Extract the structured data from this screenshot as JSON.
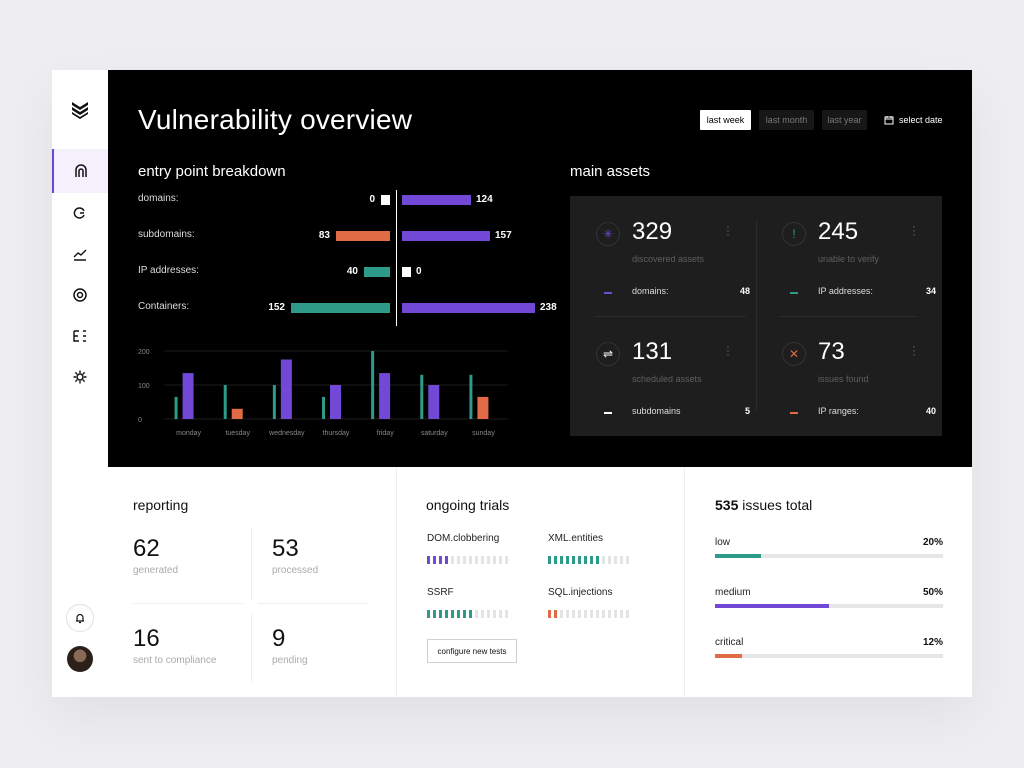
{
  "app": {
    "title": "Vulnerability overview"
  },
  "colors": {
    "purple": "#7248d6",
    "teal": "#2e9a88",
    "orange": "#e06b45",
    "dark_panel": "#1e1e1e"
  },
  "sidebar": {
    "logo_icon": "stacked-chevrons-icon",
    "items": [
      {
        "icon": "arch-icon",
        "active": true
      },
      {
        "icon": "refresh-icon",
        "active": false
      },
      {
        "icon": "trend-icon",
        "active": false
      },
      {
        "icon": "target-icon",
        "active": false
      },
      {
        "icon": "list-icon",
        "active": false
      },
      {
        "icon": "gear-icon",
        "active": false
      }
    ],
    "bell_icon": "bell-icon",
    "avatar_icon": "user-avatar"
  },
  "range": {
    "options": [
      "last week",
      "last month",
      "last year"
    ],
    "selected": "last week",
    "date_label": "select date"
  },
  "breakdown": {
    "title": "entry point breakdown",
    "rows": [
      {
        "label": "domains:",
        "left": 0,
        "right": 124,
        "left_color": "#ffffff"
      },
      {
        "label": "subdomains:",
        "left": 83,
        "right": 157,
        "left_color": "#e06b45"
      },
      {
        "label": "IP addresses:",
        "left": 40,
        "right": 0,
        "left_color": "#2e9a88"
      },
      {
        "label": "Containers:",
        "left": 152,
        "right": 238,
        "left_color": "#2e9a88"
      }
    ],
    "scale_max": 240
  },
  "chart_data": {
    "type": "bar",
    "categories": [
      "monday",
      "tuesday",
      "wednesday",
      "thursday",
      "friday",
      "saturday",
      "sunday"
    ],
    "ylim": [
      0,
      200
    ],
    "yticks": [
      0,
      100,
      200
    ],
    "series": [
      {
        "color": "#2e9a88",
        "values": [
          65,
          100,
          100,
          65,
          200,
          130,
          130
        ]
      },
      {
        "color": "#7248d6",
        "values": [
          135,
          0,
          175,
          100,
          135,
          100,
          0
        ]
      },
      {
        "color": "#e06b45",
        "values": [
          0,
          30,
          0,
          0,
          0,
          0,
          65
        ]
      }
    ]
  },
  "assets": {
    "title": "main assets",
    "items": [
      {
        "icon": "loader-icon",
        "icon_char": "✳",
        "icon_color": "#7248d6",
        "value": "329",
        "sub": "discovered assets",
        "row_label": "domains:",
        "row_value": "48",
        "mark_color": "#7248d6"
      },
      {
        "icon": "alert-icon",
        "icon_char": "!",
        "icon_color": "#2e9a88",
        "value": "245",
        "sub": "unable to verify",
        "row_label": "IP addresses:",
        "row_value": "34",
        "mark_color": "#2e9a88"
      },
      {
        "icon": "schedule-icon",
        "icon_char": "⇌",
        "icon_color": "#ffffff",
        "value": "131",
        "sub": "scheduled assets",
        "row_label": "subdomains",
        "row_value": "5",
        "mark_color": "#ffffff"
      },
      {
        "icon": "close-icon",
        "icon_char": "✕",
        "icon_color": "#e06b45",
        "value": "73",
        "sub": "issues found",
        "row_label": "IP ranges:",
        "row_value": "40",
        "mark_color": "#e06b45"
      }
    ]
  },
  "reporting": {
    "title": "reporting",
    "stats": [
      {
        "value": "62",
        "label": "generated"
      },
      {
        "value": "53",
        "label": "processed"
      },
      {
        "value": "16",
        "label": "sent to compliance"
      },
      {
        "value": "9",
        "label": "pending"
      }
    ]
  },
  "trials": {
    "title": "ongoing trials",
    "items": [
      {
        "name": "DOM.clobbering",
        "filled": 4,
        "total": 14,
        "color": "#7248d6"
      },
      {
        "name": "XML.entities",
        "filled": 9,
        "total": 14,
        "color": "#2e9a88"
      },
      {
        "name": "SSRF",
        "filled": 8,
        "total": 14,
        "color": "#2e9a88"
      },
      {
        "name": "SQL.injections",
        "filled": 2,
        "total": 14,
        "color": "#e06b45"
      }
    ],
    "button_label": "configure new tests"
  },
  "issues": {
    "total": "535",
    "title_suffix": "issues total",
    "items": [
      {
        "label": "low",
        "percent": 20,
        "percent_label": "20%",
        "color": "#2e9a88"
      },
      {
        "label": "medium",
        "percent": 50,
        "percent_label": "50%",
        "color": "#7248d6"
      },
      {
        "label": "critical",
        "percent": 12,
        "percent_label": "12%",
        "color": "#e06b45"
      }
    ]
  }
}
